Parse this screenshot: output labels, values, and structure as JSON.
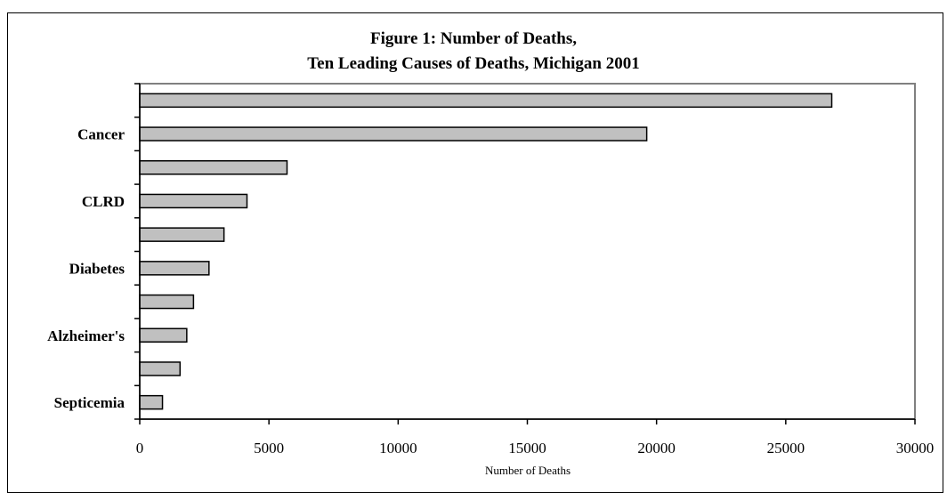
{
  "chart_data": {
    "type": "bar",
    "orientation": "horizontal",
    "title_line1": "Figure 1: Number of Deaths,",
    "title_line2": "Ten Leading Causes of Deaths, Michigan 2001",
    "xlabel": "Number of Deaths",
    "ylabel": "",
    "xlim": [
      0,
      30000
    ],
    "xticks": [
      "0",
      "5000",
      "10000",
      "15000",
      "20000",
      "25000",
      "30000"
    ],
    "grid": false,
    "legend": "none",
    "bar_color": "#c0c0c0",
    "categories": [
      "",
      "Cancer",
      "",
      "CLRD",
      "",
      "Diabetes",
      "",
      "Alzheimer's",
      "",
      "Septicemia"
    ],
    "values": [
      26780,
      19620,
      5700,
      4150,
      3260,
      2680,
      2080,
      1820,
      1560,
      880
    ]
  }
}
